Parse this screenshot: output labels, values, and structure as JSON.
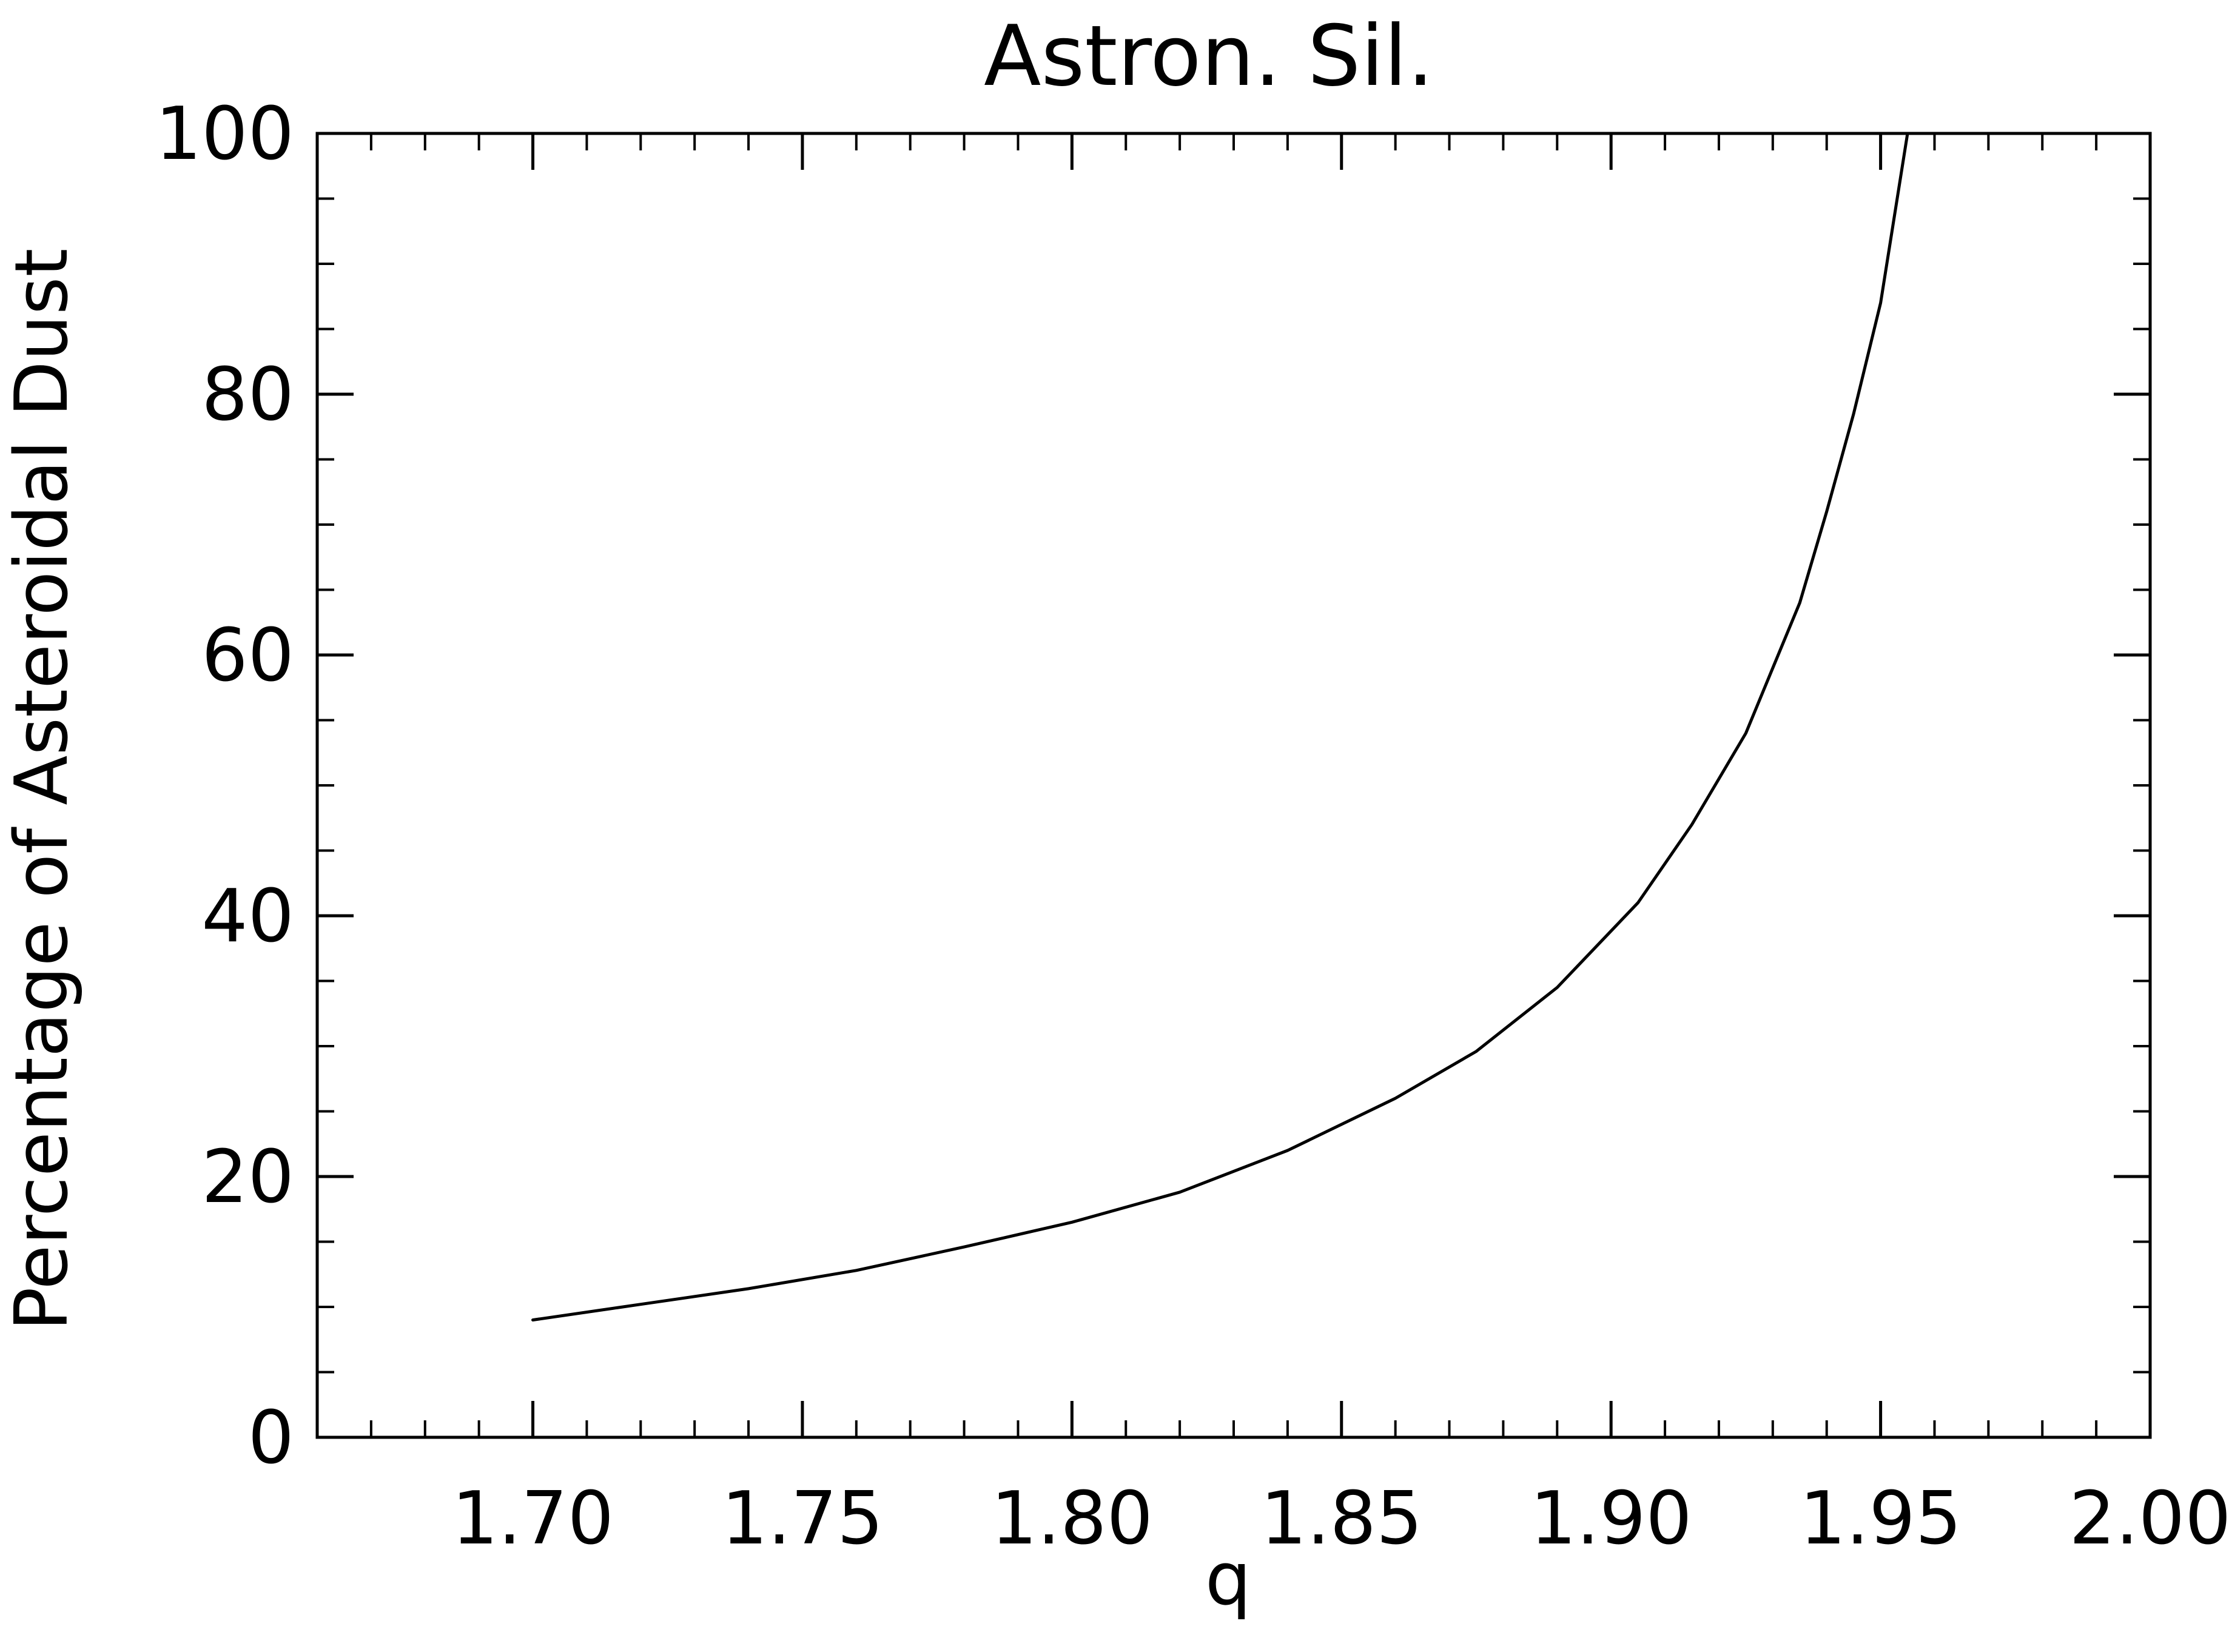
{
  "chart_data": {
    "type": "line",
    "title": "Astron. Sil.",
    "xlabel": "q",
    "ylabel": "Percentage of Asteroidal Dust",
    "xlim": [
      1.66,
      2.0
    ],
    "ylim": [
      0,
      100
    ],
    "x_ticks": [
      1.7,
      1.75,
      1.8,
      1.85,
      1.9,
      1.95,
      2.0
    ],
    "x_tick_labels": [
      "1.70",
      "1.75",
      "1.80",
      "1.85",
      "1.90",
      "1.95",
      "2.00"
    ],
    "y_ticks": [
      0,
      20,
      40,
      60,
      80,
      100
    ],
    "y_tick_labels": [
      "0",
      "20",
      "40",
      "60",
      "80",
      "100"
    ],
    "x_minor_step": 0.01,
    "y_minor_step": 5,
    "grid": false,
    "legend": "none",
    "colors": {
      "line": "#000000",
      "axes": "#000000",
      "background": "#ffffff"
    },
    "series": [
      {
        "x": [
          1.7,
          1.72,
          1.74,
          1.76,
          1.78,
          1.8,
          1.82,
          1.84,
          1.86,
          1.875,
          1.89,
          1.905,
          1.915,
          1.925,
          1.93,
          1.935,
          1.94,
          1.945,
          1.95,
          1.955
        ],
        "y": [
          9.0,
          10.2,
          11.4,
          12.8,
          14.6,
          16.5,
          18.8,
          22.0,
          26.0,
          29.6,
          34.5,
          41.0,
          47.0,
          54.0,
          59.0,
          64.0,
          71.0,
          78.5,
          87.0,
          100.0
        ]
      }
    ]
  }
}
